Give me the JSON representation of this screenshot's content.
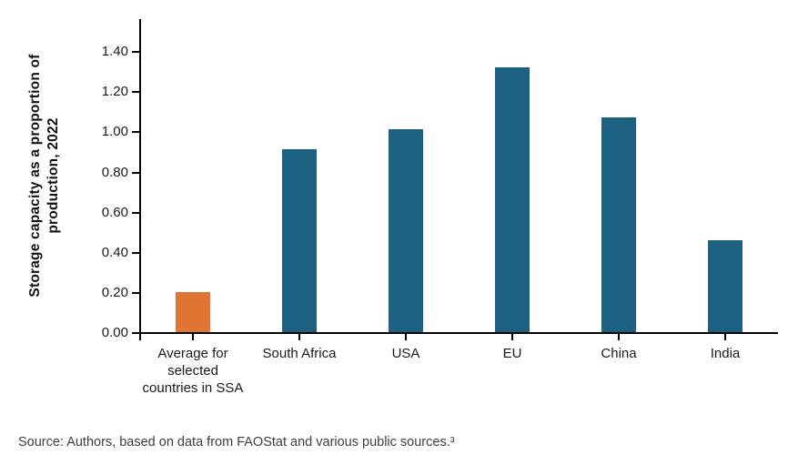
{
  "figure": {
    "background": "#ffffff",
    "source_text": "Source: Authors, based on data from FAOStat and various public sources.³"
  },
  "chart_data": {
    "type": "bar",
    "title": "",
    "xlabel": "",
    "ylabel": "Storage capacity as a proportion of production, 2022",
    "categories": [
      "Average for selected countries in SSA",
      "South Africa",
      "USA",
      "EU",
      "China",
      "India"
    ],
    "values": [
      0.2,
      0.91,
      1.01,
      1.32,
      1.07,
      0.46
    ],
    "bar_colors": [
      "#DF7433",
      "#1D6182",
      "#1D6182",
      "#1D6182",
      "#1D6182",
      "#1D6182"
    ],
    "highlight_bar_color": "#DF7433",
    "default_bar_color": "#1D6182",
    "axis_color": "#000000",
    "text_color": "#1a1a1a",
    "ylim": [
      0,
      1.56
    ],
    "y_ticks": [
      "0.00",
      "0.20",
      "0.40",
      "0.60",
      "0.80",
      "1.00",
      "1.20",
      "1.40"
    ],
    "grid": false,
    "legend_position": "none"
  }
}
